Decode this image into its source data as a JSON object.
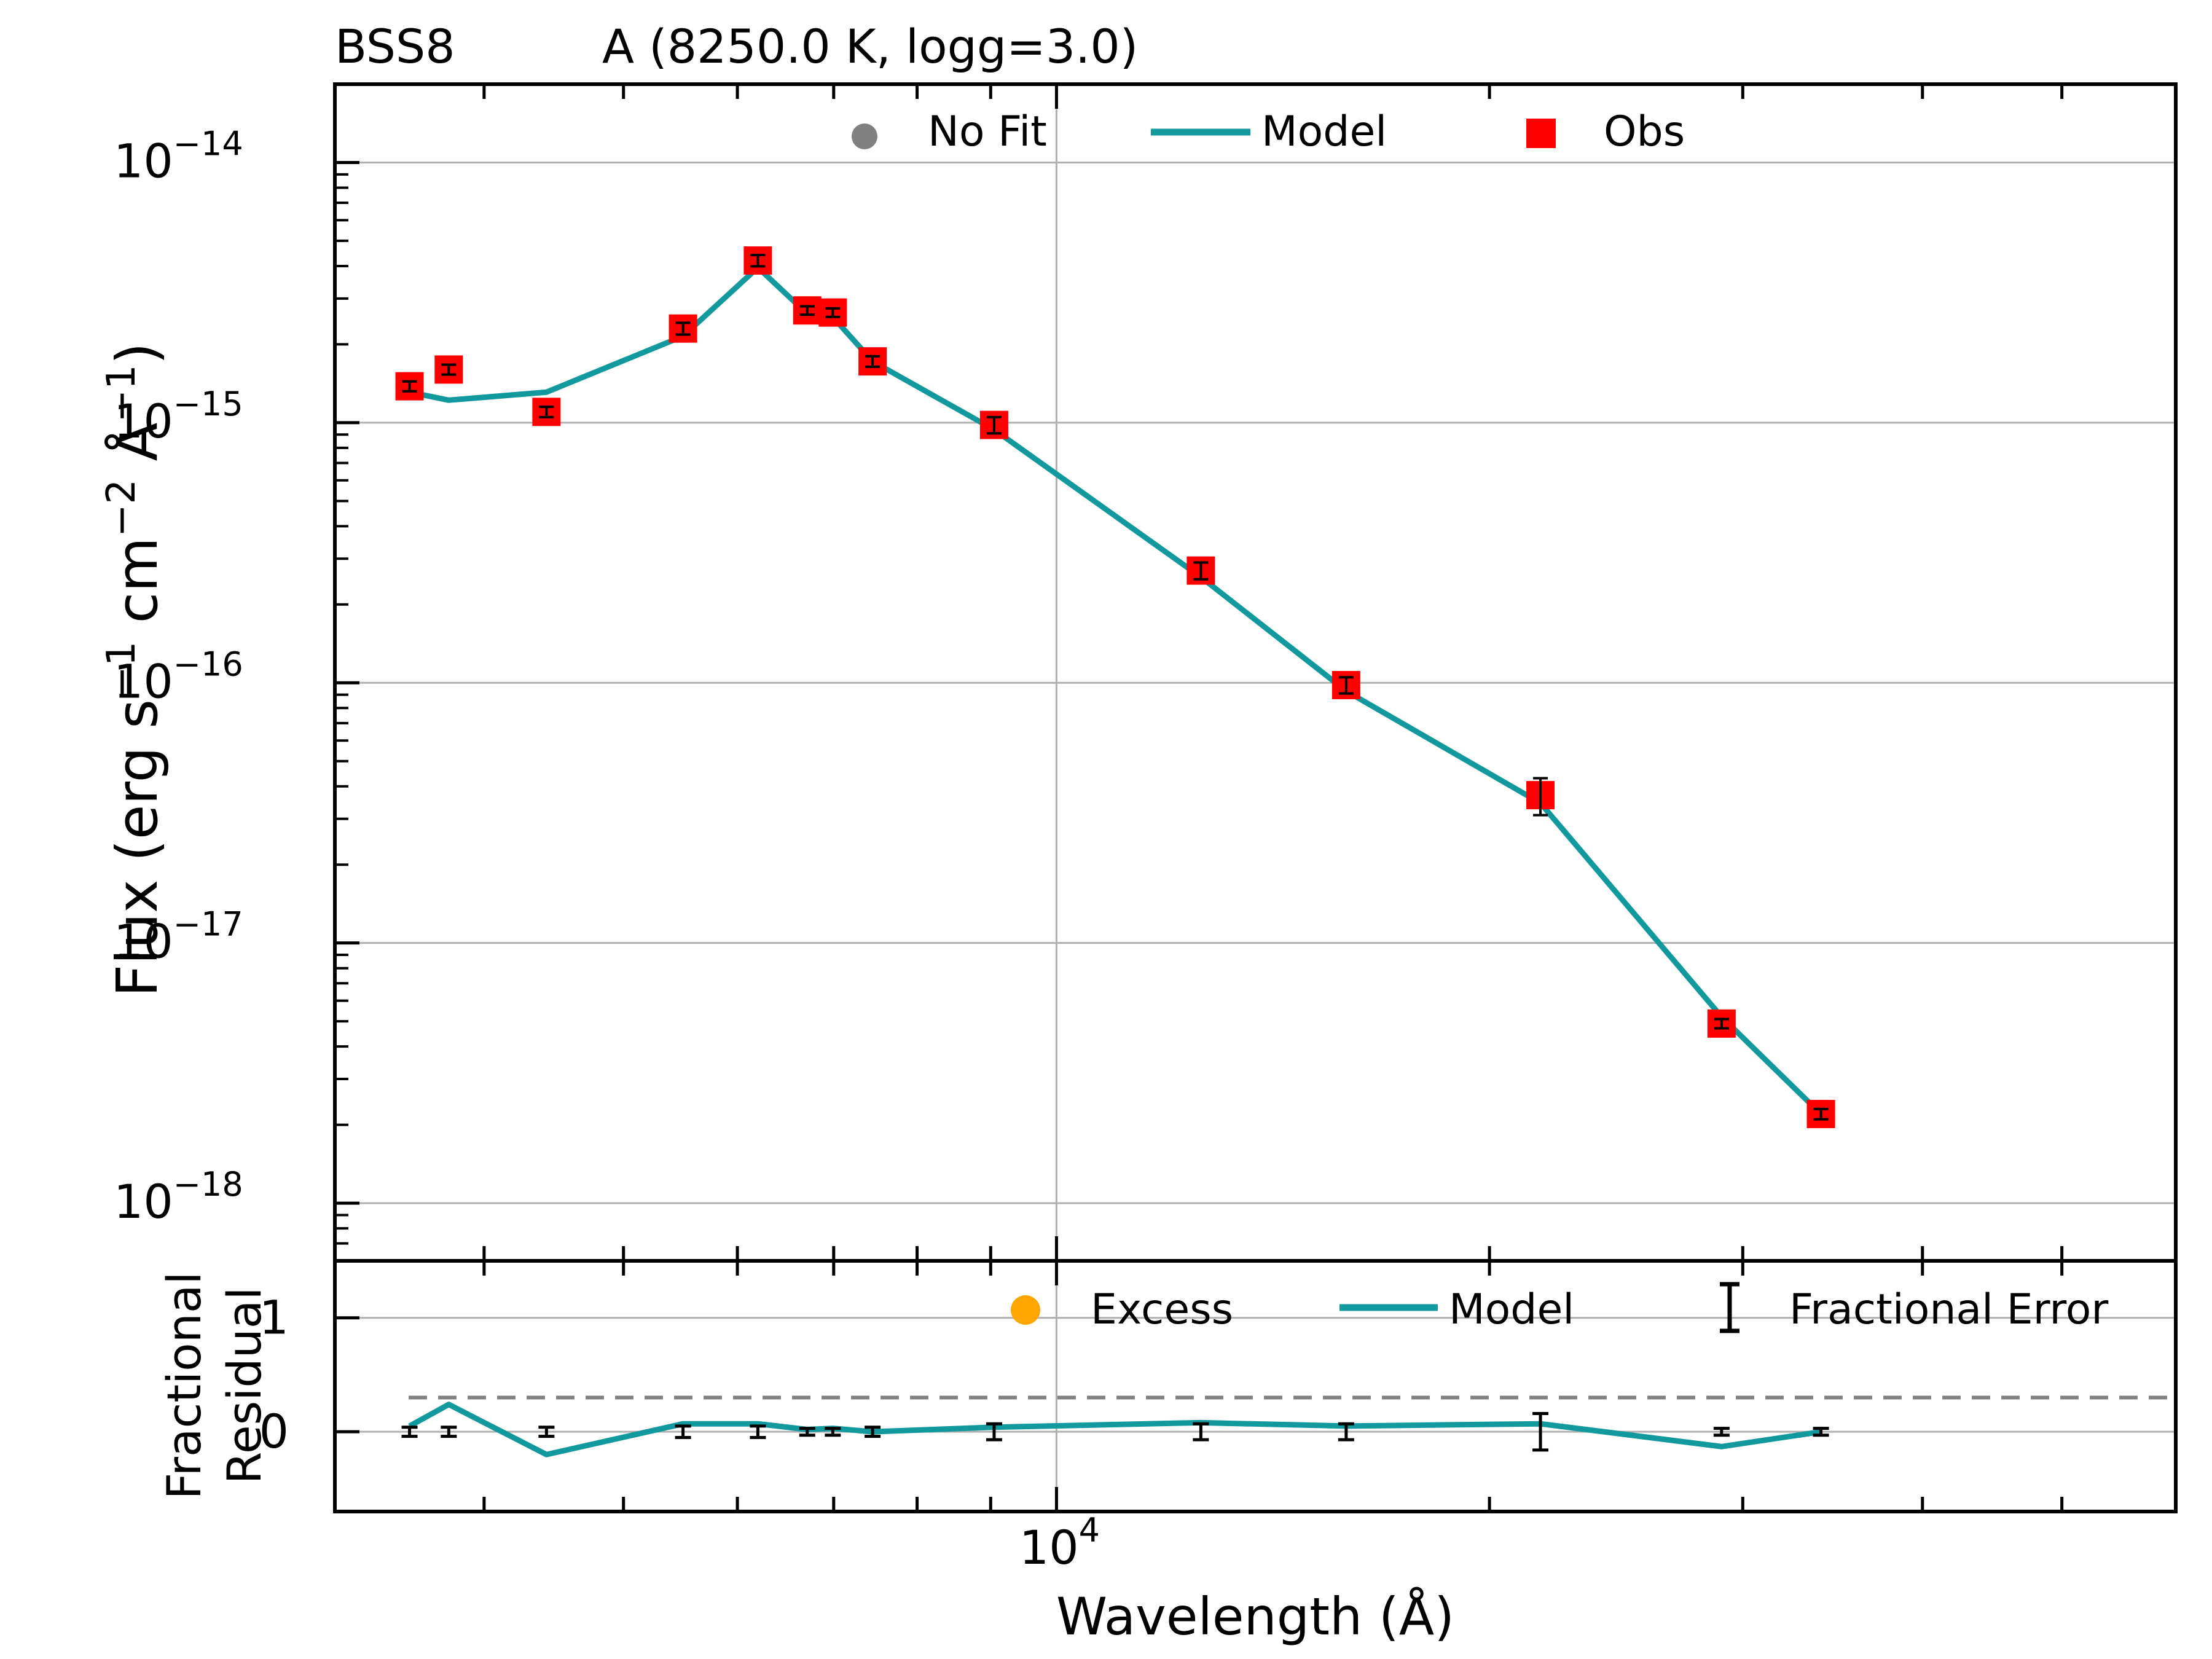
{
  "header": {
    "object": "BSS8",
    "fit": "A (8250.0 K, logg=3.0)"
  },
  "colors": {
    "model": "#11999E",
    "obs": "#FF0000",
    "nofit": "#808080",
    "excess": "#FFA500",
    "error": "#000000",
    "grid": "#B0B0B0",
    "dashed": "#808080"
  },
  "chart_data": [
    {
      "type": "scatter",
      "panel": "sed",
      "ylabel_main": "Flux (erg s",
      "ylabel_sup1": "−1",
      "ylabel_mid": " cm",
      "ylabel_sup2": "−2",
      "ylabel_mid2": " Å",
      "ylabel_sup3": "−1",
      "ylabel_end": ")",
      "xscale": "log",
      "yscale": "log",
      "xlim": [
        3150,
        60000
      ],
      "ylim": [
        6e-19,
        2e-14
      ],
      "grid": true,
      "legend_position": "top-center",
      "yticks": [
        {
          "value": 1e-18,
          "base": "10",
          "exp": "−18"
        },
        {
          "value": 1e-17,
          "base": "10",
          "exp": "−17"
        },
        {
          "value": 1e-16,
          "base": "10",
          "exp": "−16"
        },
        {
          "value": 1e-15,
          "base": "10",
          "exp": "−15"
        },
        {
          "value": 1e-14,
          "base": "10",
          "exp": "−14"
        }
      ],
      "legend": [
        {
          "label": "No Fit",
          "marker": "circle",
          "color_key": "nofit"
        },
        {
          "label": "Model",
          "marker": "line",
          "color_key": "model"
        },
        {
          "label": "Obs",
          "marker": "square",
          "color_key": "obs"
        }
      ],
      "series": [
        {
          "name": "Obs",
          "x": [
            3550,
            3780,
            4420,
            5500,
            6200,
            6710,
            6990,
            7450,
            9050,
            12600,
            15900,
            21700,
            29000,
            34000
          ],
          "y": [
            1.38e-15,
            1.6e-15,
            1.1e-15,
            2.3e-15,
            4.2e-15,
            2.7e-15,
            2.65e-15,
            1.72e-15,
            9.8e-16,
            2.7e-16,
            9.8e-17,
            3.7e-17,
            4.9e-18,
            2.2e-18
          ],
          "yerr": [
            6e-17,
            7e-17,
            5e-17,
            1.2e-16,
            2.1e-16,
            1e-16,
            1e-16,
            8e-17,
            7e-17,
            2e-17,
            7e-18,
            6e-18,
            2e-19,
            1e-19
          ]
        },
        {
          "name": "Model",
          "x": [
            3550,
            3780,
            4420,
            5500,
            6200,
            6710,
            6990,
            7450,
            9050,
            12600,
            15900,
            21700,
            29000,
            34000
          ],
          "y": [
            1.31e-15,
            1.22e-15,
            1.31e-15,
            2.15e-15,
            3.95e-15,
            2.62e-15,
            2.55e-15,
            1.72e-15,
            9.4e-16,
            2.55e-16,
            9.3e-17,
            3.45e-17,
            5.2e-18,
            2.2e-18
          ]
        }
      ]
    },
    {
      "type": "line",
      "panel": "residual",
      "xlabel": "Wavelength (Å)",
      "ylabel_line1": "Fractional",
      "ylabel_line2": "Residual",
      "xscale": "log",
      "xlim": [
        3150,
        60000
      ],
      "ylim": [
        -0.7,
        1.5
      ],
      "grid": true,
      "legend_position": "top-right",
      "reference_line": 0.3,
      "xticks": [
        {
          "value": 10000,
          "base": "10",
          "exp": "4"
        }
      ],
      "yticks": [
        {
          "value": 0,
          "label": "0"
        },
        {
          "value": 1,
          "label": "1"
        }
      ],
      "legend": [
        {
          "label": "Excess",
          "marker": "circle",
          "color_key": "excess"
        },
        {
          "label": "Model",
          "marker": "line",
          "color_key": "model"
        },
        {
          "label": "Fractional Error",
          "marker": "errorbar",
          "color_key": "error"
        }
      ],
      "series": [
        {
          "name": "Model",
          "x": [
            3550,
            3780,
            4420,
            5500,
            6200,
            6710,
            6990,
            7450,
            9050,
            12600,
            15900,
            21700,
            29000,
            34000
          ],
          "y": [
            0.05,
            0.24,
            -0.2,
            0.07,
            0.07,
            0.02,
            0.03,
            0.0,
            0.04,
            0.08,
            0.05,
            0.07,
            -0.13,
            0.0
          ]
        },
        {
          "name": "Fractional Error",
          "x": [
            3550,
            3780,
            4420,
            5500,
            6200,
            6710,
            6990,
            7450,
            9050,
            12600,
            15900,
            21700,
            29000,
            34000
          ],
          "y": [
            0,
            0,
            0,
            0,
            0,
            0,
            0,
            0,
            0,
            0,
            0,
            0,
            0,
            0
          ],
          "yerr": [
            0.04,
            0.04,
            0.04,
            0.05,
            0.05,
            0.03,
            0.03,
            0.04,
            0.07,
            0.07,
            0.07,
            0.16,
            0.03,
            0.03
          ]
        }
      ]
    }
  ]
}
